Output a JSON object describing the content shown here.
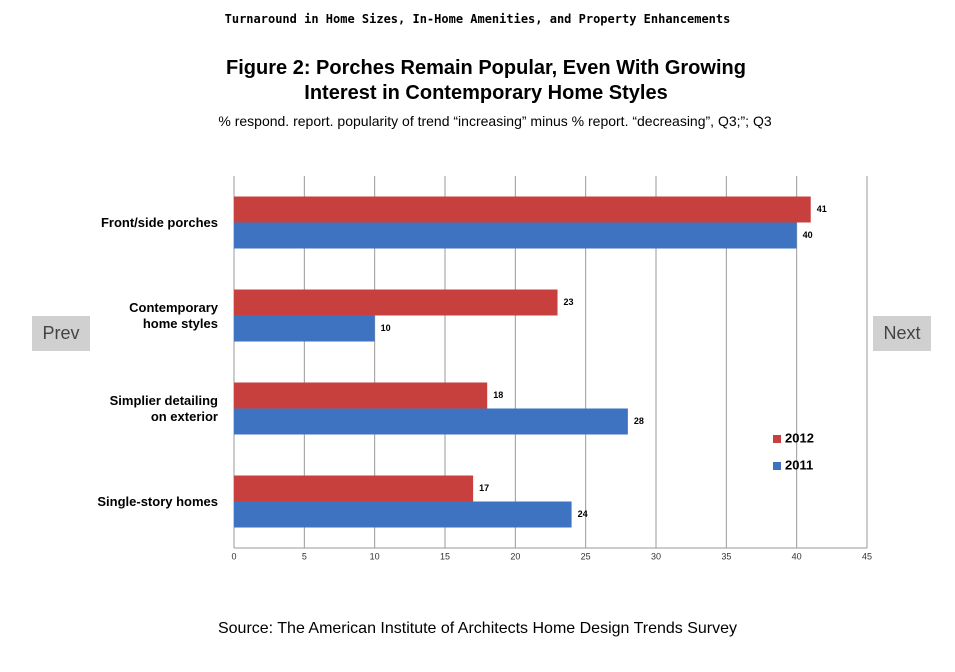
{
  "page": {
    "header": "Turnaround in Home Sizes, In-Home Amenities, and Property Enhancements",
    "prev": "Prev",
    "next": "Next",
    "source": "Source: The American Institute of Architects Home Design Trends Survey"
  },
  "chart_data": {
    "type": "hbar",
    "title": "Figure 2: Porches Remain Popular, Even With Growing\nInterest in Contemporary Home Styles",
    "subtitle": "% respond. report. popularity of trend “increasing” minus % report. “decreasing”, Q3;”; Q3",
    "categories": [
      "Front/side porches",
      "Contemporary\nhome styles",
      "Simplier detailing\non exterior",
      "Single-story homes"
    ],
    "series": [
      {
        "name": "2012",
        "color": "#c8403e",
        "values": [
          41,
          23,
          18,
          17
        ]
      },
      {
        "name": "2011",
        "color": "#3e73c2",
        "values": [
          40,
          10,
          28,
          24
        ]
      }
    ],
    "xlim": [
      0,
      45
    ],
    "xticks": [
      0,
      5,
      10,
      15,
      20,
      25,
      30,
      35,
      40,
      45
    ],
    "grid": true
  }
}
